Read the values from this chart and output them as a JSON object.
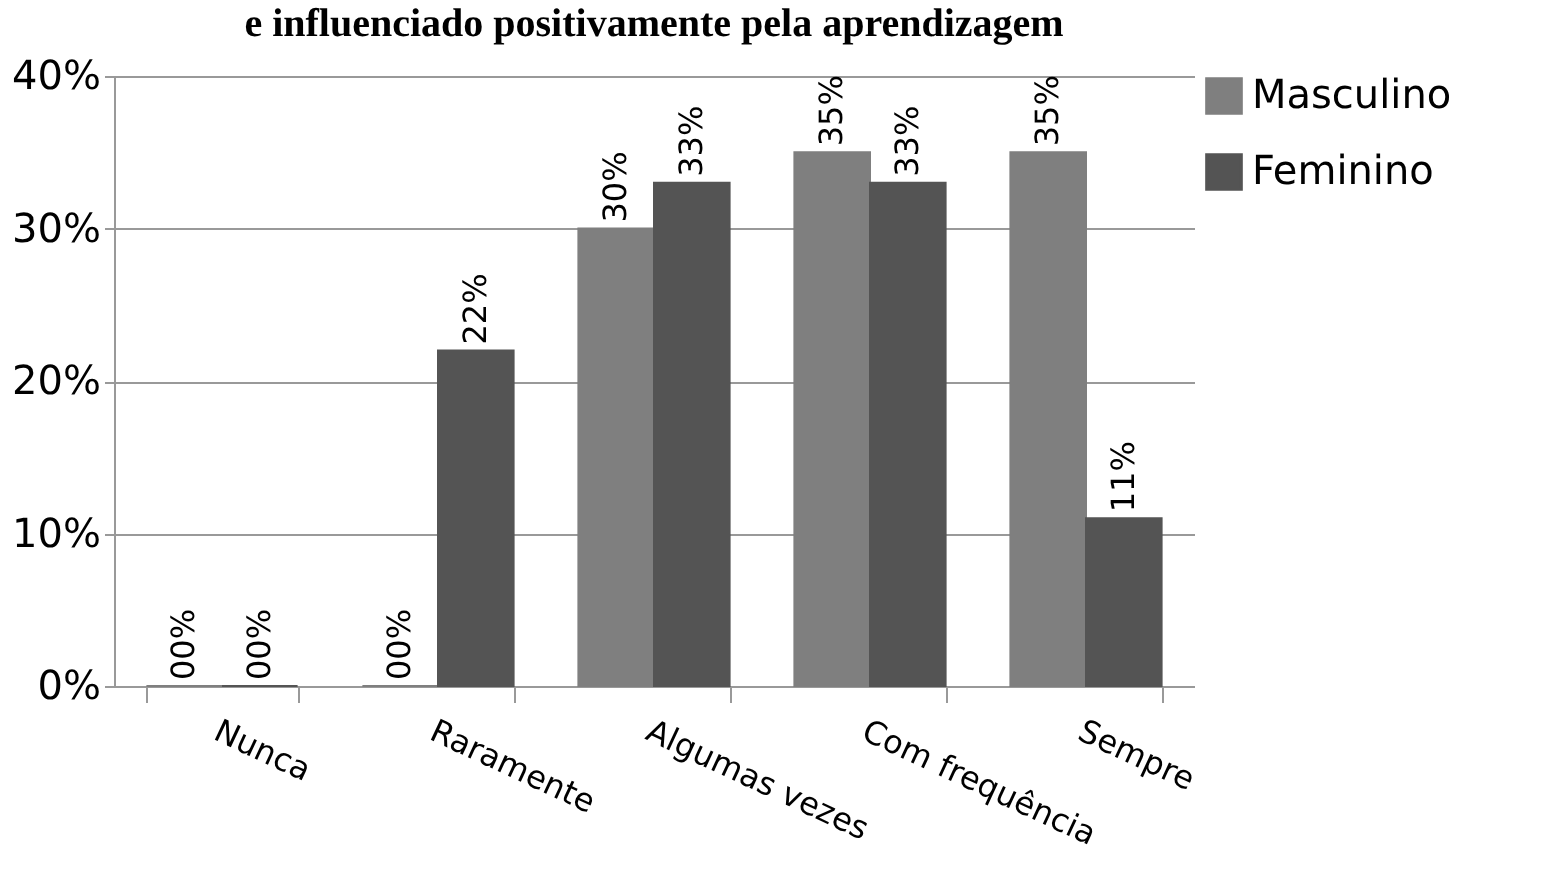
{
  "chart_data": {
    "type": "bar",
    "title": "e influenciado positivamente pela aprendizagem",
    "categories": [
      "Nunca",
      "Raramente",
      "Algumas vezes",
      "Com frequência",
      "Sempre"
    ],
    "series": [
      {
        "name": "Masculino",
        "color": "#7f7f7f",
        "values": [
          0,
          0,
          30,
          35,
          35
        ],
        "value_labels": [
          "00%",
          "00%",
          "30%",
          "35%",
          "35%"
        ]
      },
      {
        "name": "Feminino",
        "color": "#545454",
        "values": [
          0,
          22,
          33,
          33,
          11
        ],
        "value_labels": [
          "00%",
          "22%",
          "33%",
          "33%",
          "11%"
        ]
      }
    ],
    "ylim": [
      0,
      40
    ],
    "yticks": [
      {
        "value": 0,
        "label": "0%"
      },
      {
        "value": 10,
        "label": "10%"
      },
      {
        "value": 20,
        "label": "20%"
      },
      {
        "value": 30,
        "label": "30%"
      },
      {
        "value": 40,
        "label": "40%"
      }
    ],
    "grid": "y",
    "legend": "right"
  }
}
